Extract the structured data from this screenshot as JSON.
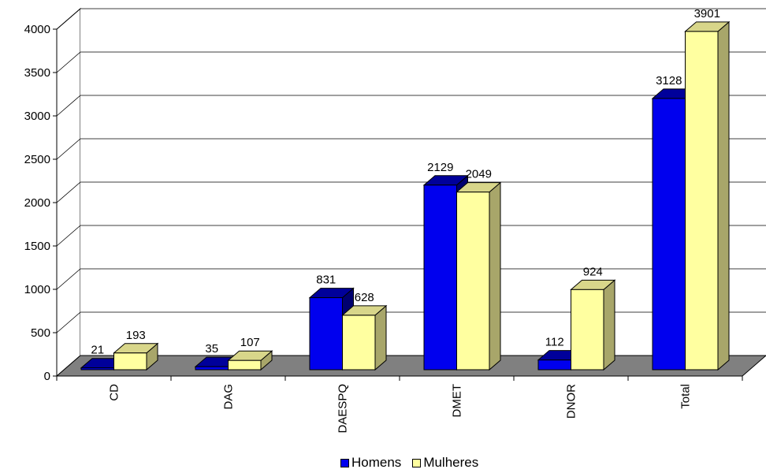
{
  "chart_data": {
    "type": "bar",
    "categories": [
      "CD",
      "DAG",
      "DAESPQ",
      "DMET",
      "DNOR",
      "Total"
    ],
    "series": [
      {
        "name": "Homens",
        "values": [
          21,
          35,
          831,
          2129,
          112,
          3128
        ],
        "color": "#0000ee",
        "label_color": "#000000"
      },
      {
        "name": "Mulheres",
        "values": [
          193,
          107,
          628,
          2049,
          924,
          3901
        ],
        "color": "#ffffa0",
        "label_color": "#000000"
      }
    ],
    "ylim": [
      0,
      4000
    ],
    "yticks": [
      0,
      500,
      1000,
      1500,
      2000,
      2500,
      3000,
      3500,
      4000
    ],
    "grid": true,
    "legend": "bottom",
    "style": "3d-clustered",
    "title": "",
    "xlabel": "",
    "ylabel": ""
  },
  "legend": {
    "items": [
      {
        "label": "Homens",
        "color": "#0000ee"
      },
      {
        "label": "Mulheres",
        "color": "#ffffa0"
      }
    ]
  }
}
